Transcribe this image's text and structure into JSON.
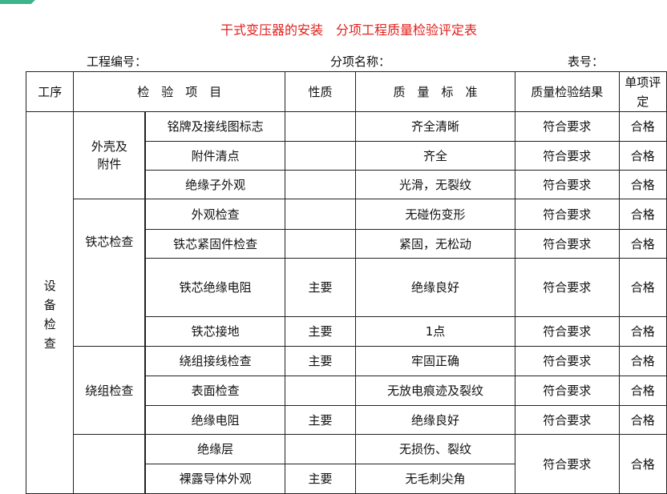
{
  "title": "干式变压器的安装　分项工程质量检验评定表",
  "meta": {
    "project_no": "工程编号：",
    "item_name": "分项名称：",
    "table_no": "表号："
  },
  "header": {
    "process": "工序",
    "items": "检　验　项　目",
    "nature": "性质",
    "standard": "质　量　标　准",
    "result": "质量检验结果",
    "grade": "单项评定"
  },
  "process": "设备检查",
  "groups": {
    "shell": "外壳及附件",
    "core": "铁芯检查",
    "winding": "绕组检查"
  },
  "rows": [
    {
      "item": "铭牌及接线图标志",
      "nature": "",
      "standard": "齐全清晰",
      "result": "符合要求",
      "grade": "合格"
    },
    {
      "item": "附件清点",
      "nature": "",
      "standard": "齐全",
      "result": "符合要求",
      "grade": "合格"
    },
    {
      "item": "绝缘子外观",
      "nature": "",
      "standard": "光滑，无裂纹",
      "result": "符合要求",
      "grade": "合格"
    },
    {
      "item": "外观检查",
      "nature": "",
      "standard": "无碰伤变形",
      "result": "符合要求",
      "grade": "合格"
    },
    {
      "item": "铁芯紧固件检查",
      "nature": "",
      "standard": "紧固，无松动",
      "result": "符合要求",
      "grade": "合格"
    },
    {
      "item": "铁芯绝缘电阻",
      "nature": "主要",
      "standard": "绝缘良好",
      "result": "符合要求",
      "grade": "合格"
    },
    {
      "item": "铁芯接地",
      "nature": "主要",
      "standard": "1点",
      "result": "符合要求",
      "grade": "合格"
    },
    {
      "item": "绕组接线检查",
      "nature": "主要",
      "standard": "牢固正确",
      "result": "符合要求",
      "grade": "合格"
    },
    {
      "item": "表面检查",
      "nature": "",
      "standard": "无放电痕迹及裂纹",
      "result": "符合要求",
      "grade": "合格"
    },
    {
      "item": "绝缘电阻",
      "nature": "主要",
      "standard": "绝缘良好",
      "result": "符合要求",
      "grade": "合格"
    },
    {
      "item": "绝缘层",
      "nature": "",
      "standard": "无损伤、裂纹",
      "result": "符合要求",
      "grade": "合格"
    },
    {
      "item": "裸露导体外观",
      "nature": "主要",
      "standard": "无毛刺尖角"
    }
  ]
}
